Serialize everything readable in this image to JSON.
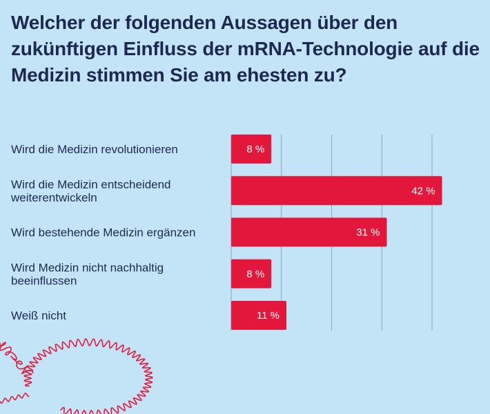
{
  "title": "Welcher der folgenden Aussagen über den zukünftigen Einfluss der mRNA-Technologie auf die Medizin stimmen Sie am ehesten zu?",
  "colors": {
    "background": "#c3e4f6",
    "bar": "#e3173b",
    "text": "#1d2850",
    "grid": "#8ea4b5",
    "squiggle": "#e3173b"
  },
  "chart_data": {
    "type": "bar",
    "orientation": "horizontal",
    "categories": [
      [
        "Wird die Medizin revolutionieren"
      ],
      [
        "Wird die Medizin entscheidend",
        "weiterentwickeln"
      ],
      [
        "Wird bestehende Medizin ergänzen"
      ],
      [
        "Wird Medizin nicht nachhaltig",
        "beeinflussen"
      ],
      [
        "Weiß nicht"
      ]
    ],
    "values": [
      8,
      42,
      31,
      8,
      11
    ],
    "value_labels": [
      "8 %",
      "42 %",
      "31 %",
      "8 %",
      "11 %"
    ],
    "xlim": [
      0,
      40
    ],
    "grid": true,
    "legend": "none"
  }
}
